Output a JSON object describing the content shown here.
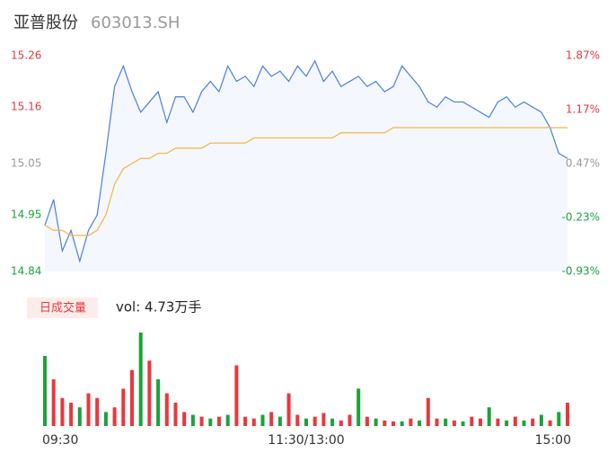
{
  "header": {
    "title": "亚普股份",
    "code": "603013.SH"
  },
  "chart_data": [
    {
      "type": "line",
      "xlim": [
        0,
        240
      ],
      "xticks": [
        {
          "value": 0,
          "label": "09:30"
        },
        {
          "value": 120,
          "label": "11:30/13:00"
        },
        {
          "value": 240,
          "label": "15:00"
        }
      ],
      "ylim": [
        14.84,
        15.26
      ],
      "yticks": [
        15.26,
        15.16,
        15.05,
        14.95,
        14.84
      ],
      "y2lim": [
        -0.93,
        1.87
      ],
      "y2ticks": [
        {
          "value": 1.87,
          "label": "1.87%"
        },
        {
          "value": 1.17,
          "label": "1.17%"
        },
        {
          "value": 0.47,
          "label": "0.47%"
        },
        {
          "value": -0.23,
          "label": "-0.23%"
        },
        {
          "value": -0.93,
          "label": "-0.93%"
        }
      ],
      "x": [
        0,
        4,
        8,
        12,
        16,
        20,
        24,
        28,
        32,
        36,
        40,
        44,
        48,
        52,
        56,
        60,
        64,
        68,
        72,
        76,
        80,
        84,
        88,
        92,
        96,
        100,
        104,
        108,
        112,
        116,
        120,
        124,
        128,
        132,
        136,
        140,
        144,
        148,
        152,
        156,
        160,
        164,
        168,
        172,
        176,
        180,
        184,
        188,
        192,
        196,
        200,
        204,
        208,
        212,
        216,
        220,
        224,
        228,
        232,
        236,
        240
      ],
      "series": [
        {
          "color": "#4a7ee6",
          "values": [
            14.93,
            14.98,
            14.88,
            14.92,
            14.86,
            14.92,
            14.95,
            15.07,
            15.2,
            15.24,
            15.19,
            15.15,
            15.17,
            15.19,
            15.13,
            15.18,
            15.18,
            15.15,
            15.19,
            15.21,
            15.19,
            15.24,
            15.21,
            15.22,
            15.2,
            15.24,
            15.22,
            15.23,
            15.21,
            15.24,
            15.22,
            15.25,
            15.21,
            15.23,
            15.2,
            15.21,
            15.22,
            15.2,
            15.21,
            15.19,
            15.2,
            15.24,
            15.22,
            15.2,
            15.17,
            15.16,
            15.18,
            15.17,
            15.17,
            15.16,
            15.15,
            15.14,
            15.17,
            15.18,
            15.16,
            15.17,
            15.16,
            15.15,
            15.12,
            15.07,
            15.06
          ]
        },
        {
          "color": "#f5b540",
          "values": [
            14.93,
            14.92,
            14.92,
            14.91,
            14.91,
            14.91,
            14.92,
            14.95,
            15.01,
            15.04,
            15.05,
            15.06,
            15.06,
            15.07,
            15.07,
            15.08,
            15.08,
            15.08,
            15.08,
            15.09,
            15.09,
            15.09,
            15.09,
            15.09,
            15.1,
            15.1,
            15.1,
            15.1,
            15.1,
            15.1,
            15.1,
            15.1,
            15.1,
            15.1,
            15.11,
            15.11,
            15.11,
            15.11,
            15.11,
            15.11,
            15.12,
            15.12,
            15.12,
            15.12,
            15.12,
            15.12,
            15.12,
            15.12,
            15.12,
            15.12,
            15.12,
            15.12,
            15.12,
            15.12,
            15.12,
            15.12,
            15.12,
            15.12,
            15.12,
            15.12,
            15.12
          ]
        }
      ]
    },
    {
      "type": "bar",
      "label": "日成交量",
      "summary": "vol: 4.73万手",
      "series": [
        {
          "color": "#e8383d",
          "values": [
            null,
            50,
            30,
            25,
            null,
            35,
            30,
            null,
            20,
            40,
            60,
            null,
            70,
            null,
            35,
            25,
            15,
            null,
            10,
            null,
            10,
            null,
            65,
            10,
            8,
            null,
            15,
            null,
            35,
            12,
            null,
            10,
            14,
            null,
            6,
            12,
            null,
            10,
            null,
            6,
            5,
            null,
            8,
            null,
            30,
            8,
            null,
            6,
            null,
            10,
            8,
            null,
            8,
            null,
            10,
            null,
            8,
            null,
            6,
            null,
            25
          ]
        },
        {
          "color": "#1aa33a",
          "values": [
            75,
            null,
            null,
            null,
            20,
            null,
            null,
            15,
            null,
            null,
            null,
            100,
            null,
            50,
            null,
            null,
            null,
            12,
            null,
            8,
            null,
            12,
            null,
            null,
            null,
            12,
            null,
            10,
            null,
            null,
            8,
            null,
            null,
            8,
            null,
            null,
            40,
            null,
            8,
            null,
            null,
            5,
            null,
            6,
            null,
            null,
            8,
            null,
            5,
            null,
            null,
            20,
            null,
            6,
            null,
            6,
            null,
            12,
            null,
            15,
            null
          ]
        }
      ]
    }
  ]
}
